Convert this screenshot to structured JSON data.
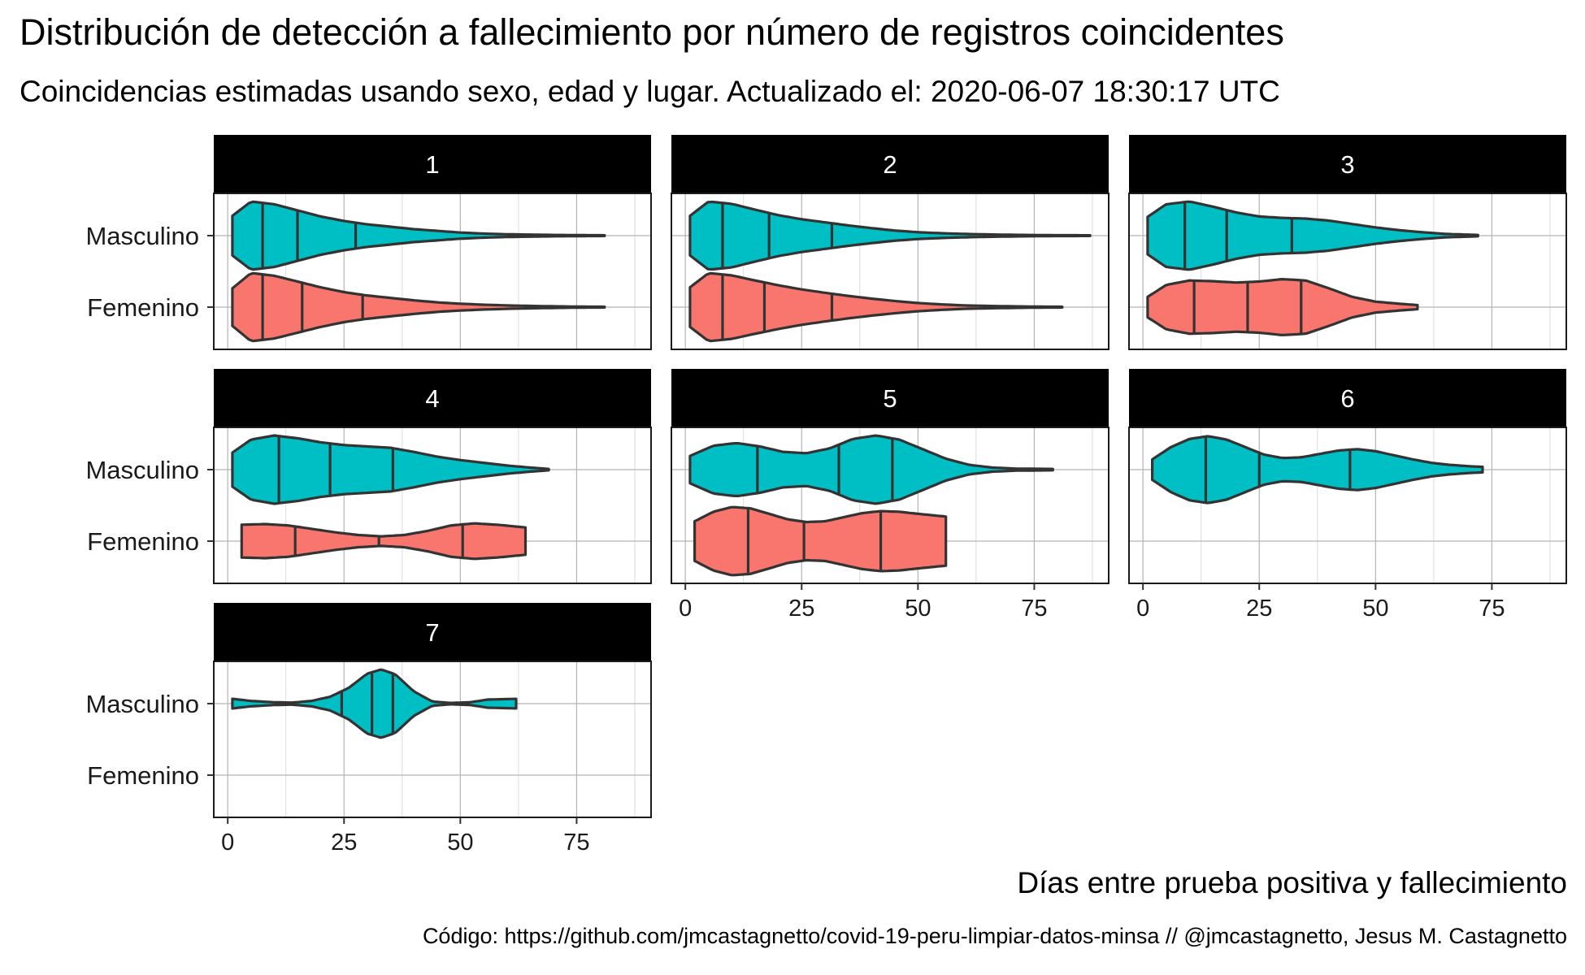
{
  "title": "Distribución de detección a fallecimiento por número de registros coincidentes",
  "subtitle": "Coincidencias estimadas usando sexo, edad y lugar. Actualizado el: 2020-06-07 18:30:17 UTC",
  "xlabel": "Días entre prueba positiva y fallecimiento",
  "caption": "Código: https://github.com/jmcastagnetto/covid-19-peru-limpiar-datos-minsa // @jmcastagnetto, Jesus M. Castagnetto",
  "chart_data": {
    "type": "violin",
    "orientation": "horizontal",
    "facet_by": "número de registros coincidentes",
    "categories": [
      "Masculino",
      "Femenino"
    ],
    "x_ticks": [
      0,
      25,
      50,
      75
    ],
    "xlim": [
      -3,
      91
    ],
    "grid": true,
    "colors": {
      "Masculino": "#00BFC4",
      "Femenino": "#F8766D",
      "strip": "#000000",
      "outline": "#333333"
    },
    "facets": [
      {
        "label": "1",
        "violins": [
          {
            "group": "Masculino",
            "range": [
              1,
              81
            ],
            "quantiles": [
              7.5,
              15,
              27.5
            ],
            "density_x": [
              1,
              5,
              10,
              15,
              20,
              25,
              30,
              35,
              40,
              45,
              50,
              55,
              60,
              65,
              70,
              75,
              81
            ],
            "density_w": [
              0.58,
              1.0,
              0.92,
              0.74,
              0.56,
              0.43,
              0.33,
              0.26,
              0.19,
              0.14,
              0.09,
              0.06,
              0.04,
              0.03,
              0.02,
              0.015,
              0.01
            ]
          },
          {
            "group": "Femenino",
            "range": [
              1,
              81
            ],
            "quantiles": [
              7.5,
              16,
              29
            ],
            "density_x": [
              1,
              5,
              10,
              15,
              20,
              25,
              30,
              35,
              40,
              45,
              50,
              55,
              60,
              65,
              70,
              75,
              81
            ],
            "density_w": [
              0.55,
              1.0,
              0.92,
              0.75,
              0.58,
              0.44,
              0.34,
              0.27,
              0.2,
              0.14,
              0.1,
              0.07,
              0.05,
              0.035,
              0.025,
              0.015,
              0.01
            ]
          }
        ]
      },
      {
        "label": "2",
        "violins": [
          {
            "group": "Masculino",
            "range": [
              1,
              87
            ],
            "quantiles": [
              8,
              18,
              31.5
            ],
            "density_x": [
              1,
              5,
              10,
              15,
              20,
              25,
              30,
              35,
              40,
              45,
              50,
              55,
              60,
              65,
              70,
              75,
              80,
              87
            ],
            "density_w": [
              0.58,
              1.0,
              0.93,
              0.76,
              0.6,
              0.48,
              0.39,
              0.3,
              0.22,
              0.15,
              0.1,
              0.07,
              0.05,
              0.035,
              0.025,
              0.018,
              0.012,
              0.01
            ]
          },
          {
            "group": "Femenino",
            "range": [
              1,
              81
            ],
            "quantiles": [
              8,
              17,
              31.5
            ],
            "density_x": [
              1,
              5,
              10,
              15,
              20,
              25,
              30,
              35,
              40,
              45,
              50,
              55,
              60,
              65,
              70,
              75,
              81
            ],
            "density_w": [
              0.58,
              1.0,
              0.93,
              0.78,
              0.64,
              0.52,
              0.42,
              0.33,
              0.25,
              0.18,
              0.12,
              0.08,
              0.05,
              0.035,
              0.025,
              0.015,
              0.01
            ]
          }
        ]
      },
      {
        "label": "3",
        "violins": [
          {
            "group": "Masculino",
            "range": [
              1,
              72
            ],
            "quantiles": [
              9,
              18,
              32
            ],
            "density_x": [
              1,
              5,
              10,
              15,
              20,
              25,
              30,
              35,
              40,
              45,
              50,
              55,
              60,
              65,
              72
            ],
            "density_w": [
              0.55,
              0.92,
              1.0,
              0.85,
              0.68,
              0.56,
              0.52,
              0.5,
              0.44,
              0.34,
              0.24,
              0.16,
              0.1,
              0.05,
              0.02
            ]
          },
          {
            "group": "Femenino",
            "range": [
              1,
              59
            ],
            "quantiles": [
              11,
              22.5,
              34
            ],
            "density_x": [
              1,
              5,
              10,
              15,
              20,
              25,
              30,
              35,
              40,
              45,
              50,
              55,
              59
            ],
            "density_w": [
              0.3,
              0.65,
              0.78,
              0.76,
              0.72,
              0.75,
              0.82,
              0.78,
              0.55,
              0.3,
              0.16,
              0.1,
              0.06
            ]
          }
        ]
      },
      {
        "label": "4",
        "violins": [
          {
            "group": "Masculino",
            "range": [
              1,
              69
            ],
            "quantiles": [
              11,
              22,
              35.5
            ],
            "density_x": [
              1,
              5,
              10,
              15,
              20,
              25,
              30,
              35,
              40,
              45,
              50,
              55,
              60,
              65,
              69
            ],
            "density_w": [
              0.5,
              0.88,
              1.0,
              0.92,
              0.8,
              0.72,
              0.68,
              0.64,
              0.52,
              0.38,
              0.28,
              0.2,
              0.12,
              0.06,
              0.02
            ]
          },
          {
            "group": "Femenino",
            "range": [
              3,
              64
            ],
            "quantiles": [
              14.5,
              32.5,
              50.5
            ],
            "density_x": [
              3,
              8,
              13,
              18,
              23,
              28,
              33,
              38,
              43,
              48,
              53,
              58,
              64
            ],
            "density_w": [
              0.48,
              0.5,
              0.46,
              0.36,
              0.26,
              0.18,
              0.14,
              0.18,
              0.3,
              0.46,
              0.52,
              0.48,
              0.4
            ]
          }
        ]
      },
      {
        "label": "5",
        "violins": [
          {
            "group": "Masculino",
            "range": [
              1,
              79
            ],
            "quantiles": [
              15.5,
              33,
              44.5
            ],
            "density_x": [
              1,
              6,
              11,
              16,
              21,
              26,
              31,
              36,
              41,
              46,
              51,
              56,
              61,
              66,
              71,
              79
            ],
            "density_w": [
              0.4,
              0.7,
              0.78,
              0.68,
              0.52,
              0.48,
              0.62,
              0.9,
              1.0,
              0.88,
              0.6,
              0.32,
              0.14,
              0.06,
              0.03,
              0.02
            ]
          },
          {
            "group": "Femenino",
            "range": [
              2,
              56
            ],
            "quantiles": [
              13.5,
              25.5,
              42
            ],
            "density_x": [
              2,
              6,
              10,
              14,
              18,
              22,
              26,
              30,
              34,
              38,
              42,
              46,
              50,
              56
            ],
            "density_w": [
              0.58,
              0.86,
              1.0,
              0.96,
              0.8,
              0.64,
              0.56,
              0.58,
              0.7,
              0.82,
              0.88,
              0.86,
              0.8,
              0.72
            ]
          }
        ]
      },
      {
        "label": "6",
        "violins": [
          {
            "group": "Masculino",
            "range": [
              2,
              73
            ],
            "quantiles": [
              13.5,
              25,
              44.5
            ],
            "density_x": [
              2,
              6,
              10,
              14,
              18,
              22,
              26,
              30,
              34,
              38,
              42,
              46,
              50,
              54,
              58,
              62,
              66,
              70,
              73
            ],
            "density_w": [
              0.3,
              0.66,
              0.9,
              0.98,
              0.88,
              0.66,
              0.44,
              0.34,
              0.36,
              0.46,
              0.56,
              0.6,
              0.54,
              0.42,
              0.3,
              0.2,
              0.14,
              0.1,
              0.08
            ]
          }
        ]
      },
      {
        "label": "7",
        "violins": [
          {
            "group": "Masculino",
            "range": [
              1,
              62
            ],
            "quantiles": [
              24.5,
              31,
              35.5
            ],
            "density_x": [
              1,
              5,
              10,
              14,
              18,
              22,
              26,
              30,
              33,
              36,
              40,
              44,
              48,
              52,
              56,
              62
            ],
            "density_w": [
              0.14,
              0.08,
              0.04,
              0.03,
              0.08,
              0.2,
              0.46,
              0.88,
              1.0,
              0.86,
              0.36,
              0.06,
              0.02,
              0.04,
              0.12,
              0.14
            ]
          }
        ]
      }
    ]
  }
}
